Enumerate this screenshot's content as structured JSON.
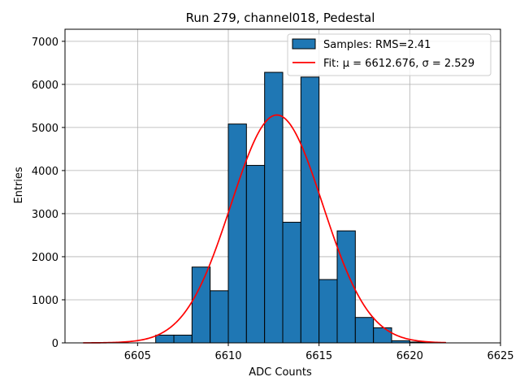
{
  "chart_data": {
    "type": "bar",
    "title": "Run 279, channel018, Pedestal",
    "xlabel": "ADC Counts",
    "ylabel": "Entries",
    "xlim": [
      6601,
      6625
    ],
    "ylim": [
      0,
      7280
    ],
    "xticks": [
      6605,
      6610,
      6615,
      6620,
      6625
    ],
    "yticks": [
      0,
      1000,
      2000,
      3000,
      4000,
      5000,
      6000,
      7000
    ],
    "grid": true,
    "legend_position": "upper right",
    "histogram": {
      "name": "Samples: RMS=2.41",
      "color": "#1f77b4",
      "edge_color": "#000000",
      "bin_edges": [
        6602,
        6603,
        6604,
        6605,
        6606,
        6607,
        6608,
        6609,
        6610,
        6611,
        6612,
        6613,
        6614,
        6615,
        6616,
        6617,
        6618,
        6619,
        6620,
        6621,
        6622,
        6623,
        6624
      ],
      "counts": [
        0,
        0,
        0,
        0,
        180,
        180,
        1760,
        1210,
        5080,
        4120,
        6280,
        2800,
        6170,
        1470,
        2600,
        590,
        350,
        50,
        20,
        0,
        0,
        0
      ]
    },
    "fit": {
      "name": "Fit: μ = 6612.676, σ = 2.529",
      "color": "#ff0000",
      "mu": 6612.676,
      "sigma": 2.529,
      "amplitude": 5290,
      "x_range": [
        6602,
        6622
      ]
    }
  }
}
